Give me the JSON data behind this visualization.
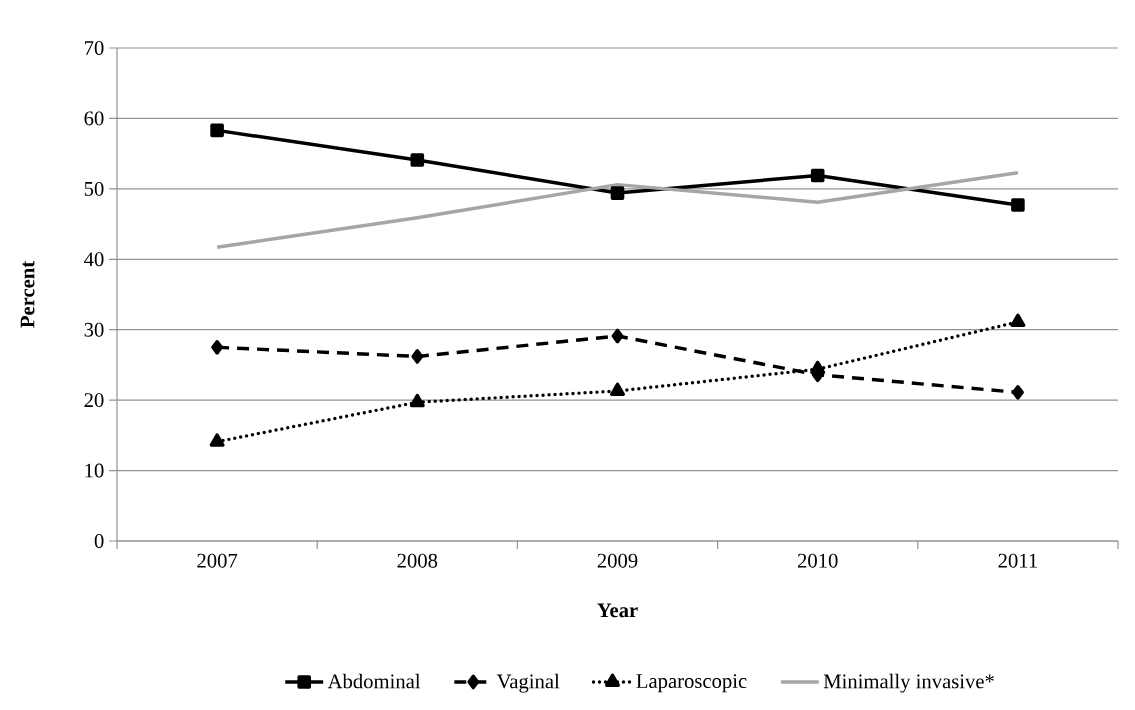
{
  "chart_data": {
    "type": "line",
    "xlabel": "Year",
    "ylabel": "Percent",
    "categories": [
      "2007",
      "2008",
      "2009",
      "2010",
      "2011"
    ],
    "series": [
      {
        "name": "Abdominal",
        "color": "#000000",
        "marker": "square",
        "line_style": "solid",
        "values": [
          58.3,
          54.1,
          49.4,
          51.9,
          47.7
        ]
      },
      {
        "name": "Vaginal",
        "color": "#000000",
        "marker": "diamond",
        "line_style": "dashed",
        "values": [
          27.5,
          26.2,
          29.1,
          23.6,
          21.1
        ]
      },
      {
        "name": "Laparoscopic",
        "color": "#000000",
        "marker": "triangle",
        "line_style": "dotted",
        "values": [
          14.1,
          19.7,
          21.3,
          24.4,
          31.1
        ]
      },
      {
        "name": "Minimally invasive*",
        "color": "#a6a6a6",
        "marker": "none",
        "line_style": "solid",
        "values": [
          41.7,
          45.9,
          50.6,
          48.1,
          52.3
        ]
      }
    ],
    "ylim": [
      0,
      70
    ],
    "yticks": [
      0,
      10,
      20,
      30,
      40,
      50,
      60,
      70
    ],
    "grid": "y",
    "legend": "bottom"
  }
}
